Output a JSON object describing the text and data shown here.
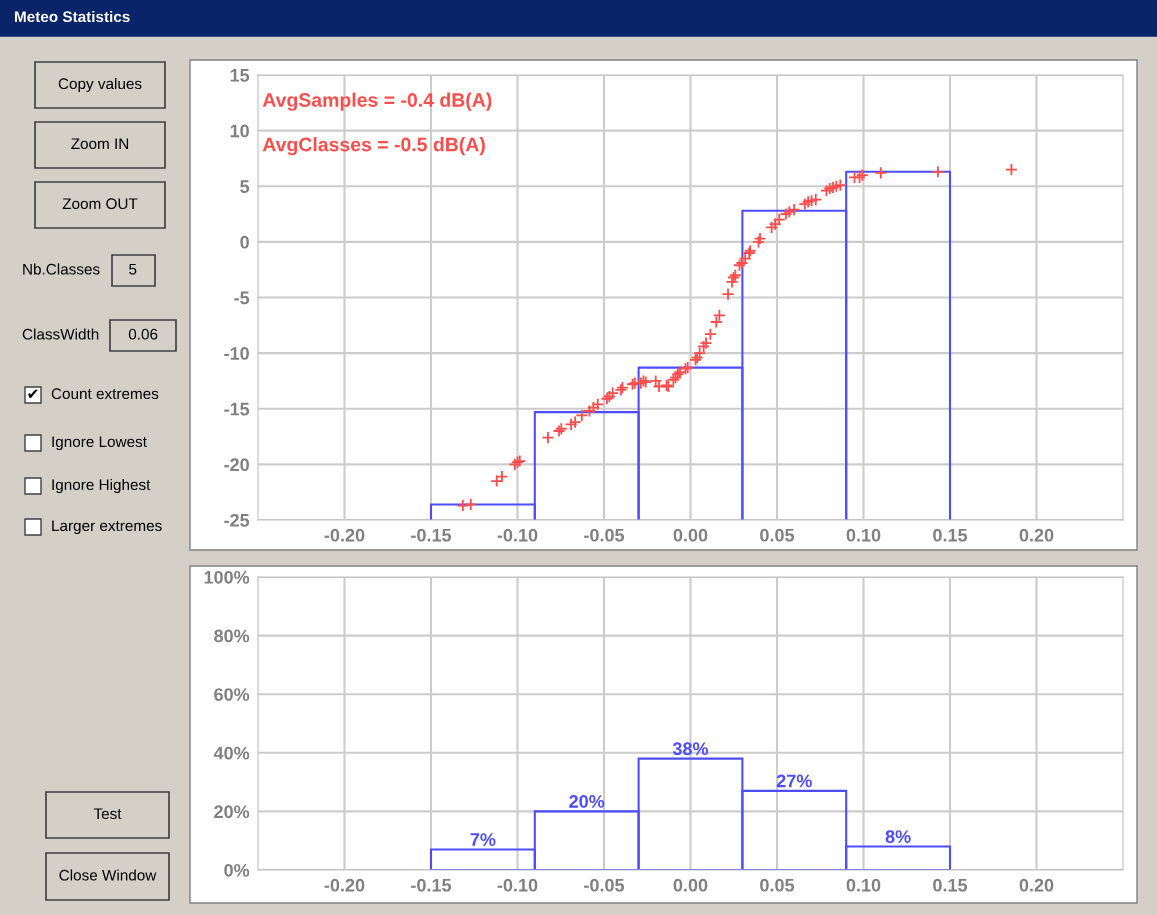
{
  "chart_data": [
    {
      "type": "other",
      "title": "Meteo Statistics",
      "annotations": [
        "Copy values",
        "Zoom IN",
        "Zoom OUT",
        "Nb.Classes",
        "5",
        "ClassWidth",
        "0.06",
        "Count extremes",
        "Ignore Lowest",
        "Ignore Highest",
        "Larger extremes",
        "Test",
        "Close Window",
        "✔"
      ]
    },
    {
      "type": "scatter",
      "grid": true,
      "xlim": [
        -0.25,
        0.25
      ],
      "xticks": [
        {
          "value": -0.2,
          "label": "-0.20"
        },
        {
          "value": -0.15,
          "label": "-0.15"
        },
        {
          "value": -0.1,
          "label": "-0.10"
        },
        {
          "value": -0.05,
          "label": "-0.05"
        },
        {
          "value": 0,
          "label": "0.00"
        },
        {
          "value": 0.05,
          "label": "0.05"
        },
        {
          "value": 0.1,
          "label": "0.10"
        },
        {
          "value": 0.15,
          "label": "0.15"
        },
        {
          "value": 0.2,
          "label": "0.20"
        }
      ],
      "ylim": [
        -25,
        15
      ],
      "yticks": [
        -25,
        -20,
        -15,
        -10,
        -5,
        0,
        5,
        10,
        15
      ],
      "annotations": [
        "AvgSamples = -0.4 dB(A)",
        "AvgClasses = -0.5 dB(A)"
      ],
      "series": [
        {
          "type": "line",
          "color": "#4d4dff",
          "x": [
            -0.15,
            -0.15,
            -0.09,
            -0.09
          ],
          "values": [
            -25,
            -23.6,
            -23.6,
            -25
          ]
        },
        {
          "type": "line",
          "color": "#4d4dff",
          "x": [
            -0.09,
            -0.09,
            -0.03,
            -0.03
          ],
          "values": [
            -25,
            -15.3,
            -15.3,
            -25
          ]
        },
        {
          "type": "line",
          "color": "#4d4dff",
          "x": [
            -0.03,
            -0.03,
            0.03,
            0.03
          ],
          "values": [
            -25,
            -11.3,
            -11.3,
            -25
          ]
        },
        {
          "type": "line",
          "color": "#4d4dff",
          "x": [
            0.03,
            0.03,
            0.09,
            0.09
          ],
          "values": [
            -25,
            2.8,
            2.8,
            -25
          ]
        },
        {
          "type": "line",
          "color": "#4d4dff",
          "x": [
            0.09,
            0.09,
            0.15,
            0.15
          ],
          "values": [
            -25,
            6.3,
            6.3,
            -25
          ]
        },
        {
          "type": "scatter",
          "marker": "cross",
          "color": "#ff4d4d",
          "x": [
            -0.1316,
            -0.127,
            -0.112,
            -0.109,
            -0.1015,
            -0.1,
            -0.0987,
            -0.0824,
            -0.076,
            -0.0747,
            -0.069,
            -0.0667,
            -0.0628,
            -0.0584,
            -0.0561,
            -0.0536,
            -0.0483,
            -0.0469,
            -0.045,
            -0.0402,
            -0.0393,
            -0.0335,
            -0.0322,
            -0.0287,
            -0.0272,
            -0.0259,
            -0.0201,
            -0.0182,
            -0.0138,
            -0.0128,
            -0.0099,
            -0.0086,
            -0.0073,
            -0.0061,
            -0.0029,
            -0.0016,
            0.0029,
            0.0038,
            0.0053,
            0.0076,
            0.009,
            0.0115,
            0.0149,
            0.0167,
            0.0217,
            0.024,
            0.0249,
            0.0259,
            0.0283,
            0.0297,
            0.0316,
            0.0339,
            0.0345,
            0.0393,
            0.0402,
            0.0469,
            0.0489,
            0.0513,
            0.0552,
            0.0571,
            0.0599,
            0.0661,
            0.068,
            0.07,
            0.0724,
            0.0786,
            0.0805,
            0.0824,
            0.0843,
            0.0866,
            0.0948,
            0.0977,
            0.0993,
            0.11,
            0.143,
            0.1855
          ],
          "values": [
            -23.7,
            -23.6,
            -21.5,
            -21.1,
            -20.0,
            -19.8,
            -19.7,
            -17.6,
            -17.0,
            -16.8,
            -16.4,
            -16.2,
            -15.6,
            -15.2,
            -14.9,
            -14.6,
            -14.1,
            -13.9,
            -13.6,
            -13.3,
            -13.1,
            -12.8,
            -12.7,
            -12.7,
            -12.5,
            -12.6,
            -12.5,
            -13.0,
            -12.9,
            -13.0,
            -12.4,
            -12.2,
            -11.9,
            -11.7,
            -11.4,
            -11.3,
            -10.6,
            -10.4,
            -10.0,
            -9.4,
            -9.1,
            -8.3,
            -7.2,
            -6.6,
            -4.7,
            -3.6,
            -3.2,
            -3.0,
            -2.1,
            -1.9,
            -1.5,
            -1.0,
            -0.8,
            0.0,
            0.3,
            1.3,
            1.6,
            2.0,
            2.5,
            2.7,
            2.9,
            3.4,
            3.6,
            3.7,
            3.8,
            4.6,
            4.8,
            4.9,
            5.0,
            5.1,
            5.8,
            5.8,
            6.0,
            6.2,
            6.3,
            6.5
          ]
        }
      ]
    },
    {
      "type": "histogram",
      "grid": true,
      "color": "#4d4dff",
      "bins": [
        -0.15,
        -0.09,
        -0.03,
        0.03,
        0.09,
        0.15
      ],
      "values": [
        7,
        20,
        38,
        27,
        8
      ],
      "value_labels": [
        "7%",
        "20%",
        "38%",
        "27%",
        "8%"
      ],
      "xlim": [
        -0.25,
        0.25
      ],
      "xticks": [
        {
          "value": -0.2,
          "label": "-0.20"
        },
        {
          "value": -0.15,
          "label": "-0.15"
        },
        {
          "value": -0.1,
          "label": "-0.10"
        },
        {
          "value": -0.05,
          "label": "-0.05"
        },
        {
          "value": 0,
          "label": "0.00"
        },
        {
          "value": 0.05,
          "label": "0.05"
        },
        {
          "value": 0.1,
          "label": "0.10"
        },
        {
          "value": 0.15,
          "label": "0.15"
        },
        {
          "value": 0.2,
          "label": "0.20"
        }
      ],
      "ylim": [
        0,
        100
      ],
      "yticks": [
        {
          "value": 0,
          "label": "0%"
        },
        {
          "value": 20,
          "label": "20%"
        },
        {
          "value": 40,
          "label": "40%"
        },
        {
          "value": 60,
          "label": "60%"
        },
        {
          "value": 80,
          "label": "80%"
        },
        {
          "value": 100,
          "label": "100%"
        }
      ]
    }
  ]
}
